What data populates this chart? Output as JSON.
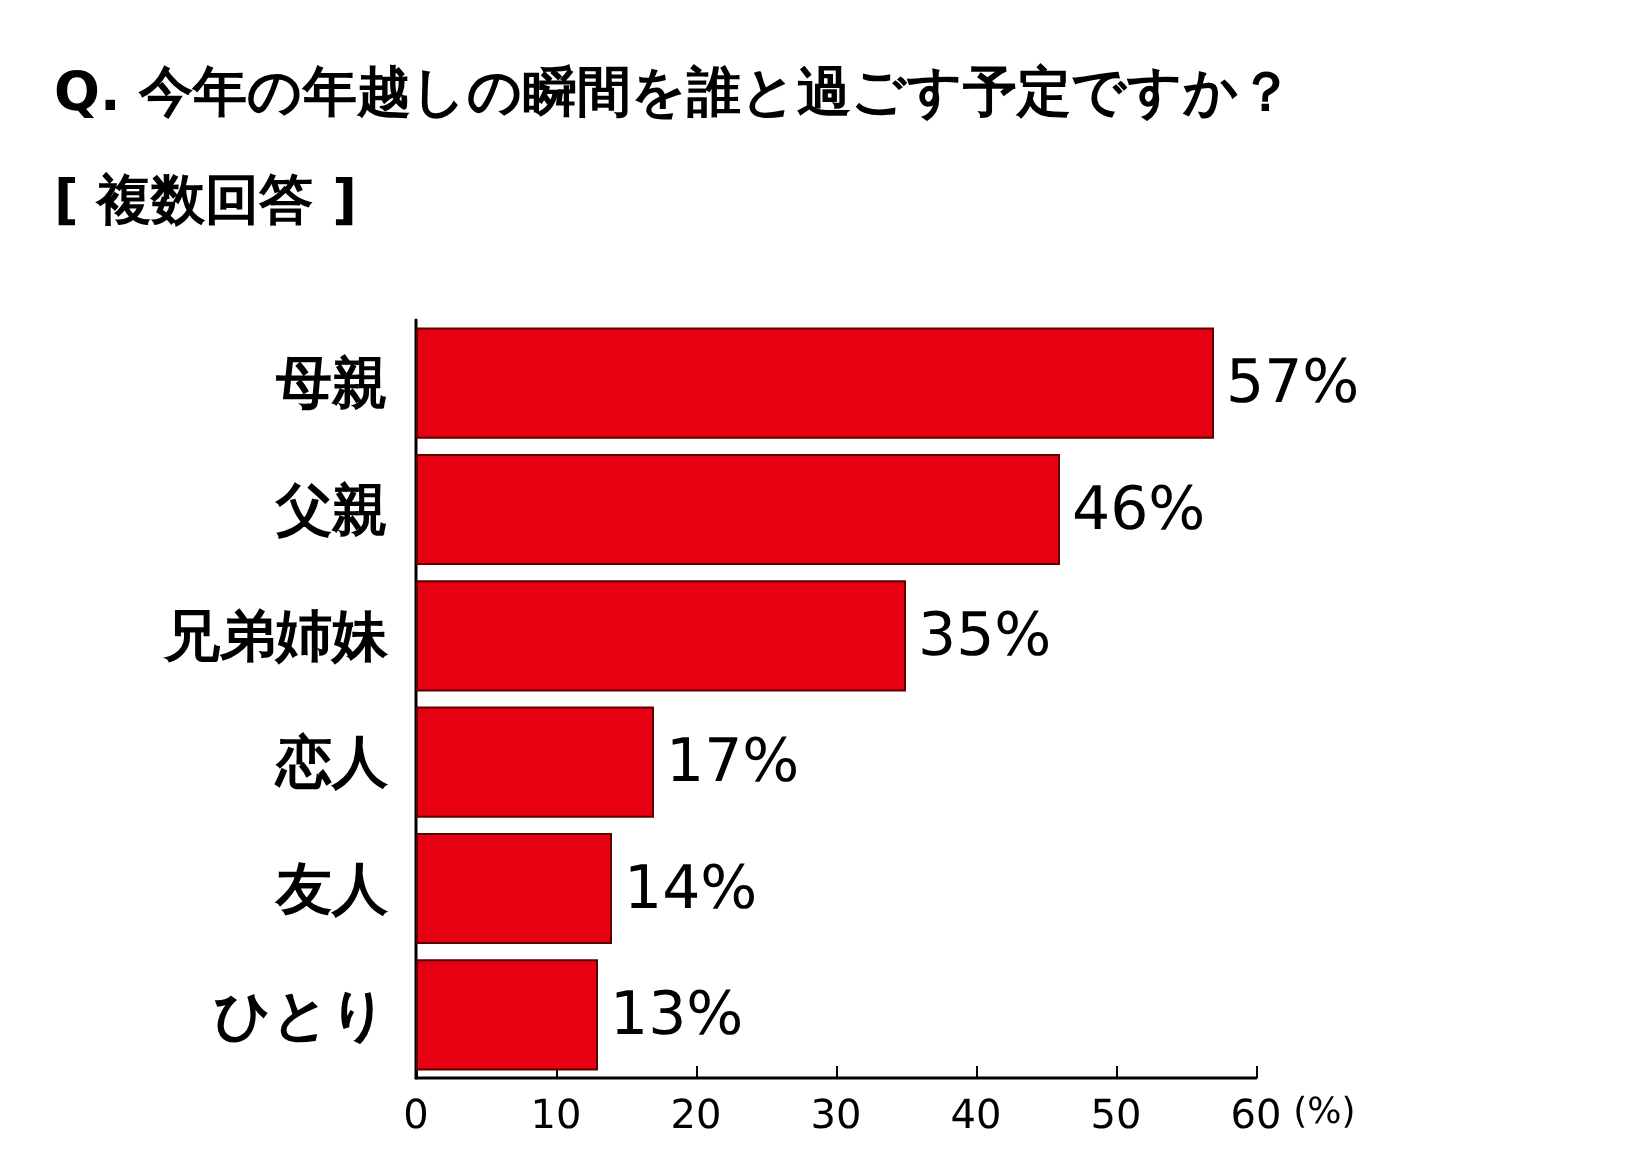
{
  "chart_data": {
    "type": "bar",
    "orientation": "horizontal",
    "title": "Q. 今年の年越しの瞬間を誰と過ごす予定ですか？",
    "subtitle": "[ 複数回答 ]",
    "xlabel": "(%)",
    "categories": [
      "母親",
      "父親",
      "兄弟姉妹",
      "恋人",
      "友人",
      "ひとり"
    ],
    "values": [
      57,
      46,
      35,
      17,
      14,
      13
    ],
    "value_labels": [
      "57%",
      "46%",
      "35%",
      "17%",
      "14%",
      "13%"
    ],
    "color": "#e60012",
    "xlim": [
      0,
      60
    ],
    "xticks": [
      0,
      10,
      20,
      30,
      40,
      50,
      60
    ],
    "grid": false
  }
}
